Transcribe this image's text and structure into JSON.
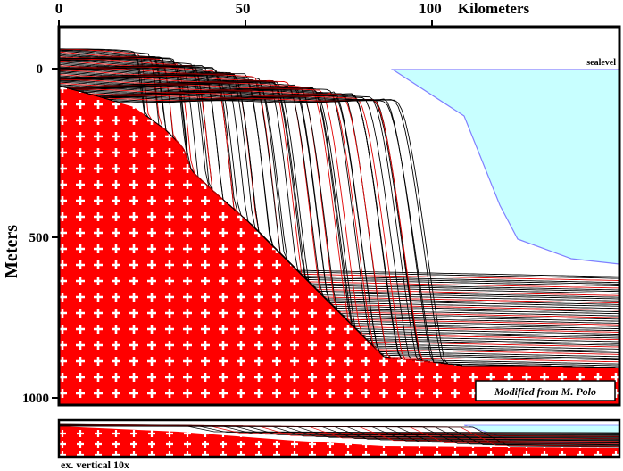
{
  "figure": {
    "x_axis": {
      "label": "Kilometers",
      "ticks": [
        {
          "value": 0,
          "label": "0"
        },
        {
          "value": 50,
          "label": "50"
        },
        {
          "value": 100,
          "label": "100"
        }
      ]
    },
    "y_axis": {
      "label": "Meters",
      "ticks": [
        {
          "value": 0,
          "label": "0"
        },
        {
          "value": 500,
          "label": "500"
        },
        {
          "value": 1000,
          "label": "1000"
        }
      ]
    },
    "sealevel_label": "sealevel",
    "credit": "Modified from M. Polo",
    "inset_caption": "ex. vertical 10x",
    "colors": {
      "basement": "#ff0000",
      "basement_cross": "#ffffff",
      "sea": "#c8ffff",
      "sea_floor_line": "#8080ff",
      "clinoform_black": "#000000",
      "clinoform_red": "#e00000",
      "frame": "#000000"
    }
  }
}
